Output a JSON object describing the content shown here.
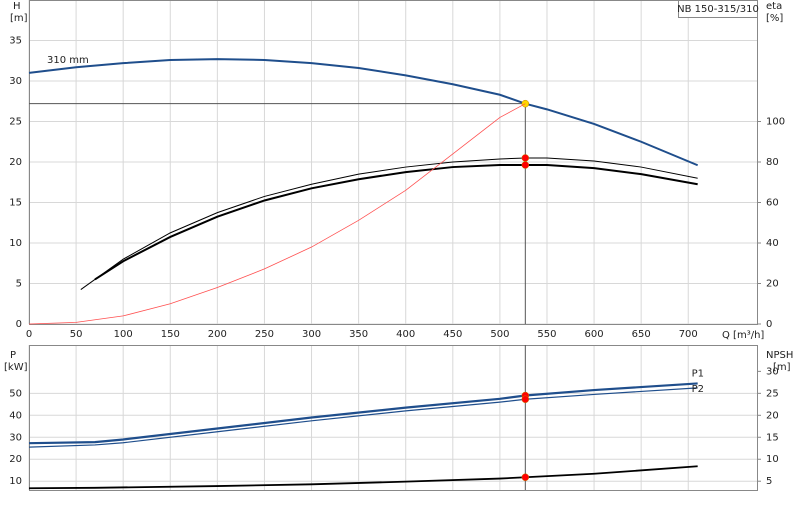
{
  "chart_data": [
    {
      "type": "line",
      "title": "NB 150-315/310",
      "x_label": "Q [m³/h]",
      "y_label": "H",
      "y_unit": "[m]",
      "y2_label": "eta",
      "y2_unit": "[%]",
      "xlim": [
        0,
        773
      ],
      "xticks": [
        0,
        50,
        100,
        150,
        200,
        250,
        300,
        350,
        400,
        450,
        500,
        550,
        600,
        650,
        700
      ],
      "ylim": [
        0,
        40
      ],
      "yticks": [
        0,
        5,
        10,
        15,
        20,
        25,
        30,
        35
      ],
      "y2lim": [
        0,
        160
      ],
      "y2ticks": [
        0,
        20,
        40,
        60,
        80,
        100
      ],
      "grid": true,
      "duty_x": 527,
      "duty_y": 27.2,
      "series": [
        {
          "name": "310 mm",
          "label_pos": "start",
          "color": "#1f4e8c",
          "width": 2,
          "marker_color": "#ffd700",
          "x": [
            0,
            50,
            100,
            150,
            200,
            250,
            300,
            350,
            400,
            450,
            500,
            527,
            550,
            600,
            650,
            710
          ],
          "values": [
            31,
            31.7,
            32.2,
            32.6,
            32.7,
            32.6,
            32.2,
            31.6,
            30.7,
            29.6,
            28.3,
            27.2,
            26.5,
            24.7,
            22.5,
            19.6
          ]
        },
        {
          "color": "#000000",
          "width": 1,
          "axis": "y2",
          "marker_color": "#ff0000",
          "x": [
            55,
            100,
            150,
            200,
            250,
            300,
            350,
            400,
            450,
            500,
            527,
            550,
            600,
            650,
            710
          ],
          "values": [
            17,
            32,
            45,
            55,
            63,
            69,
            74,
            77.5,
            80,
            81.5,
            82,
            82,
            80.5,
            77.5,
            72
          ]
        },
        {
          "color": "#000000",
          "width": 2,
          "axis": "y2",
          "marker_color": "#ff0000",
          "x": [
            70,
            100,
            150,
            200,
            250,
            300,
            350,
            400,
            450,
            500,
            527,
            550,
            600,
            650,
            710
          ],
          "values": [
            22,
            31,
            43,
            53,
            61,
            67,
            71.5,
            75,
            77.5,
            78.5,
            78.5,
            78.5,
            77,
            74,
            69
          ]
        },
        {
          "color": "#ff5050",
          "width": 0.8,
          "x": [
            0,
            50,
            100,
            150,
            200,
            250,
            300,
            350,
            400,
            450,
            500,
            527
          ],
          "values": [
            0,
            0.2,
            1,
            2.5,
            4.5,
            6.8,
            9.5,
            12.8,
            16.5,
            21,
            25.5,
            27.2
          ]
        }
      ]
    },
    {
      "type": "line",
      "y_label": "P",
      "y_unit": "[kW]",
      "y2_label": "NPSH",
      "y2_unit": "[m]",
      "xlim": [
        0,
        773
      ],
      "xticks": [
        0,
        50,
        100,
        150,
        200,
        250,
        300,
        350,
        400,
        450,
        500,
        550,
        600,
        650,
        700
      ],
      "x_tick_labels": false,
      "ylim": [
        6,
        72
      ],
      "yticks": [
        10,
        20,
        30,
        40,
        50
      ],
      "y2lim": [
        3,
        36
      ],
      "y2ticks": [
        5,
        10,
        15,
        20,
        25,
        30
      ],
      "grid": true,
      "duty_x": 527,
      "series": [
        {
          "name": "P1",
          "label_pos": "end",
          "color": "#1f4e8c",
          "width": 2.2,
          "marker_color": "#ff0000",
          "x": [
            0,
            70,
            100,
            200,
            300,
            400,
            500,
            527,
            600,
            710
          ],
          "values": [
            27.3,
            27.8,
            29,
            34,
            39,
            43.5,
            47.5,
            49,
            51.5,
            54.5
          ]
        },
        {
          "name": "P2",
          "label_pos": "end",
          "color": "#1f4e8c",
          "width": 1.2,
          "marker_color": "#ff0000",
          "x": [
            0,
            70,
            100,
            200,
            300,
            400,
            500,
            527,
            600,
            710
          ],
          "values": [
            25.5,
            26.5,
            27.5,
            32.5,
            37.5,
            42,
            46,
            47.3,
            49.5,
            52.5
          ]
        },
        {
          "color": "#000000",
          "width": 1.8,
          "axis": "y2",
          "marker_color": "#ff0000",
          "x": [
            0,
            70,
            200,
            300,
            400,
            500,
            527,
            600,
            710
          ],
          "values": [
            3.4,
            3.5,
            3.9,
            4.3,
            4.9,
            5.6,
            5.9,
            6.7,
            8.4
          ]
        }
      ]
    }
  ]
}
